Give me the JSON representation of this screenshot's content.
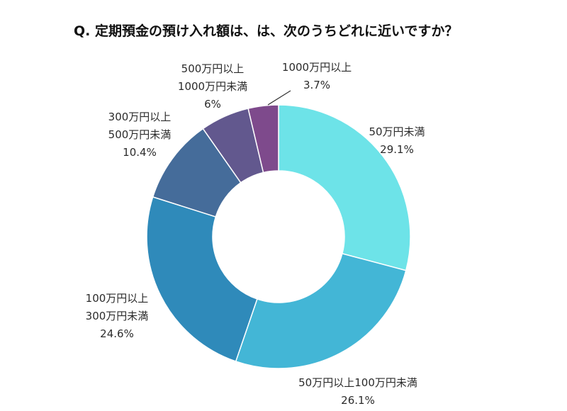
{
  "chart_data": {
    "type": "pie",
    "title": "Q. 定期預金の預け入れ額は、は、次のうちどれに近いですか？",
    "unit": "%",
    "slices": [
      {
        "label": [
          "50万円未満"
        ],
        "value": 29.1,
        "value_label": "29.1%",
        "color": "#6de3e8"
      },
      {
        "label": [
          "50万円以上100万円未満"
        ],
        "value": 26.1,
        "value_label": "26.1%",
        "color": "#43b6d6"
      },
      {
        "label": [
          "100万円以上",
          "300万円未満"
        ],
        "value": 24.6,
        "value_label": "24.6%",
        "color": "#2f8aba"
      },
      {
        "label": [
          "300万円以上",
          "500万円未満"
        ],
        "value": 10.4,
        "value_label": "10.4%",
        "color": "#456c9a"
      },
      {
        "label": [
          "500万円以上",
          "1000万円未満"
        ],
        "value": 6.0,
        "value_label": "6%",
        "color": "#62588e"
      },
      {
        "label": [
          "1000万円以上"
        ],
        "value": 3.7,
        "value_label": "3.7%",
        "color": "#7e4a8c"
      }
    ]
  }
}
